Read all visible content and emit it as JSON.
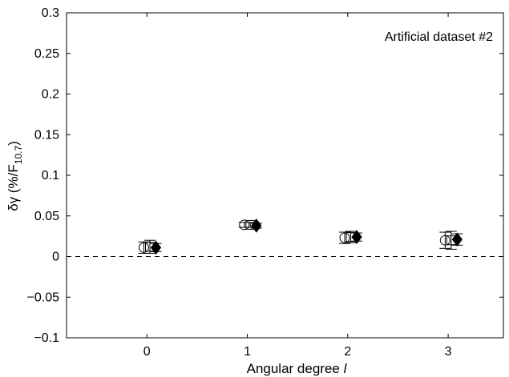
{
  "chart_data": {
    "type": "scatter",
    "annotation": "Artificial dataset #2",
    "xlabel": "Angular degree ",
    "xlabel_italic": "l",
    "ylabel_main": "δγ (%/F",
    "ylabel_sub": "10.7",
    "ylabel_close": ")",
    "xlim": [
      -0.8,
      3.55
    ],
    "ylim": [
      -0.1,
      0.3
    ],
    "x_ticks": [
      0,
      1,
      2,
      3
    ],
    "x_tick_labels": [
      "0",
      "1",
      "2",
      "3"
    ],
    "y_ticks": [
      -0.1,
      -0.05,
      0,
      0.05,
      0.1,
      0.15,
      0.2,
      0.25,
      0.3
    ],
    "y_tick_labels": [
      "−0.1",
      "−0.05",
      "0",
      "0.05",
      "0.1",
      "0.15",
      "0.2",
      "0.25",
      "0.3"
    ],
    "reference_line": {
      "y": 0,
      "style": "dashed"
    },
    "series": [
      {
        "marker": "open-circle",
        "x": [
          -0.03,
          0.97,
          1.97,
          2.97
        ],
        "y": [
          0.011,
          0.039,
          0.023,
          0.02
        ],
        "err": [
          0.007,
          0.003,
          0.007,
          0.01
        ]
      },
      {
        "marker": "open-square",
        "x": [
          0.03,
          1.03,
          2.03,
          3.03
        ],
        "y": [
          0.012,
          0.039,
          0.024,
          0.02
        ],
        "err": [
          0.008,
          0.003,
          0.007,
          0.011
        ]
      },
      {
        "marker": "filled-diamond",
        "x": [
          0.09,
          1.09,
          2.09,
          3.09
        ],
        "y": [
          0.011,
          0.038,
          0.024,
          0.021
        ],
        "err": [
          0.005,
          0.003,
          0.005,
          0.007
        ]
      }
    ]
  }
}
